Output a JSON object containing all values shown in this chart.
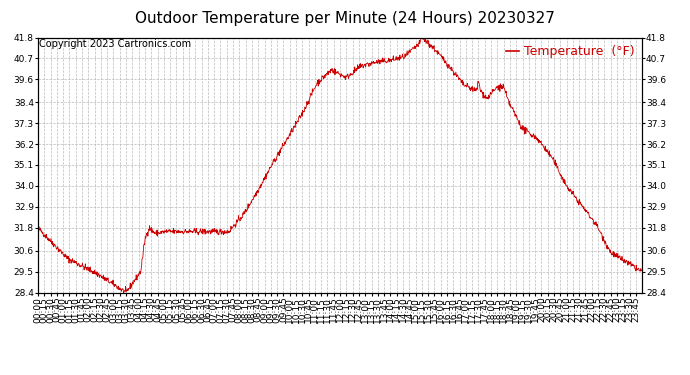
{
  "title": "Outdoor Temperature per Minute (24 Hours) 20230327",
  "copyright_text": "Copyright 2023 Cartronics.com",
  "legend_label": "Temperature  (°F)",
  "line_color": "#cc0000",
  "bg_color": "#ffffff",
  "grid_color": "#bbbbbb",
  "ylim": [
    28.4,
    41.8
  ],
  "yticks": [
    28.4,
    29.5,
    30.6,
    31.8,
    32.9,
    34.0,
    35.1,
    36.2,
    37.3,
    38.4,
    39.6,
    40.7,
    41.8
  ],
  "x_tick_interval": 15,
  "total_minutes": 1440,
  "x_labels_step": 15,
  "title_fontsize": 11,
  "tick_fontsize": 6.5,
  "legend_fontsize": 9,
  "copyright_fontsize": 7
}
